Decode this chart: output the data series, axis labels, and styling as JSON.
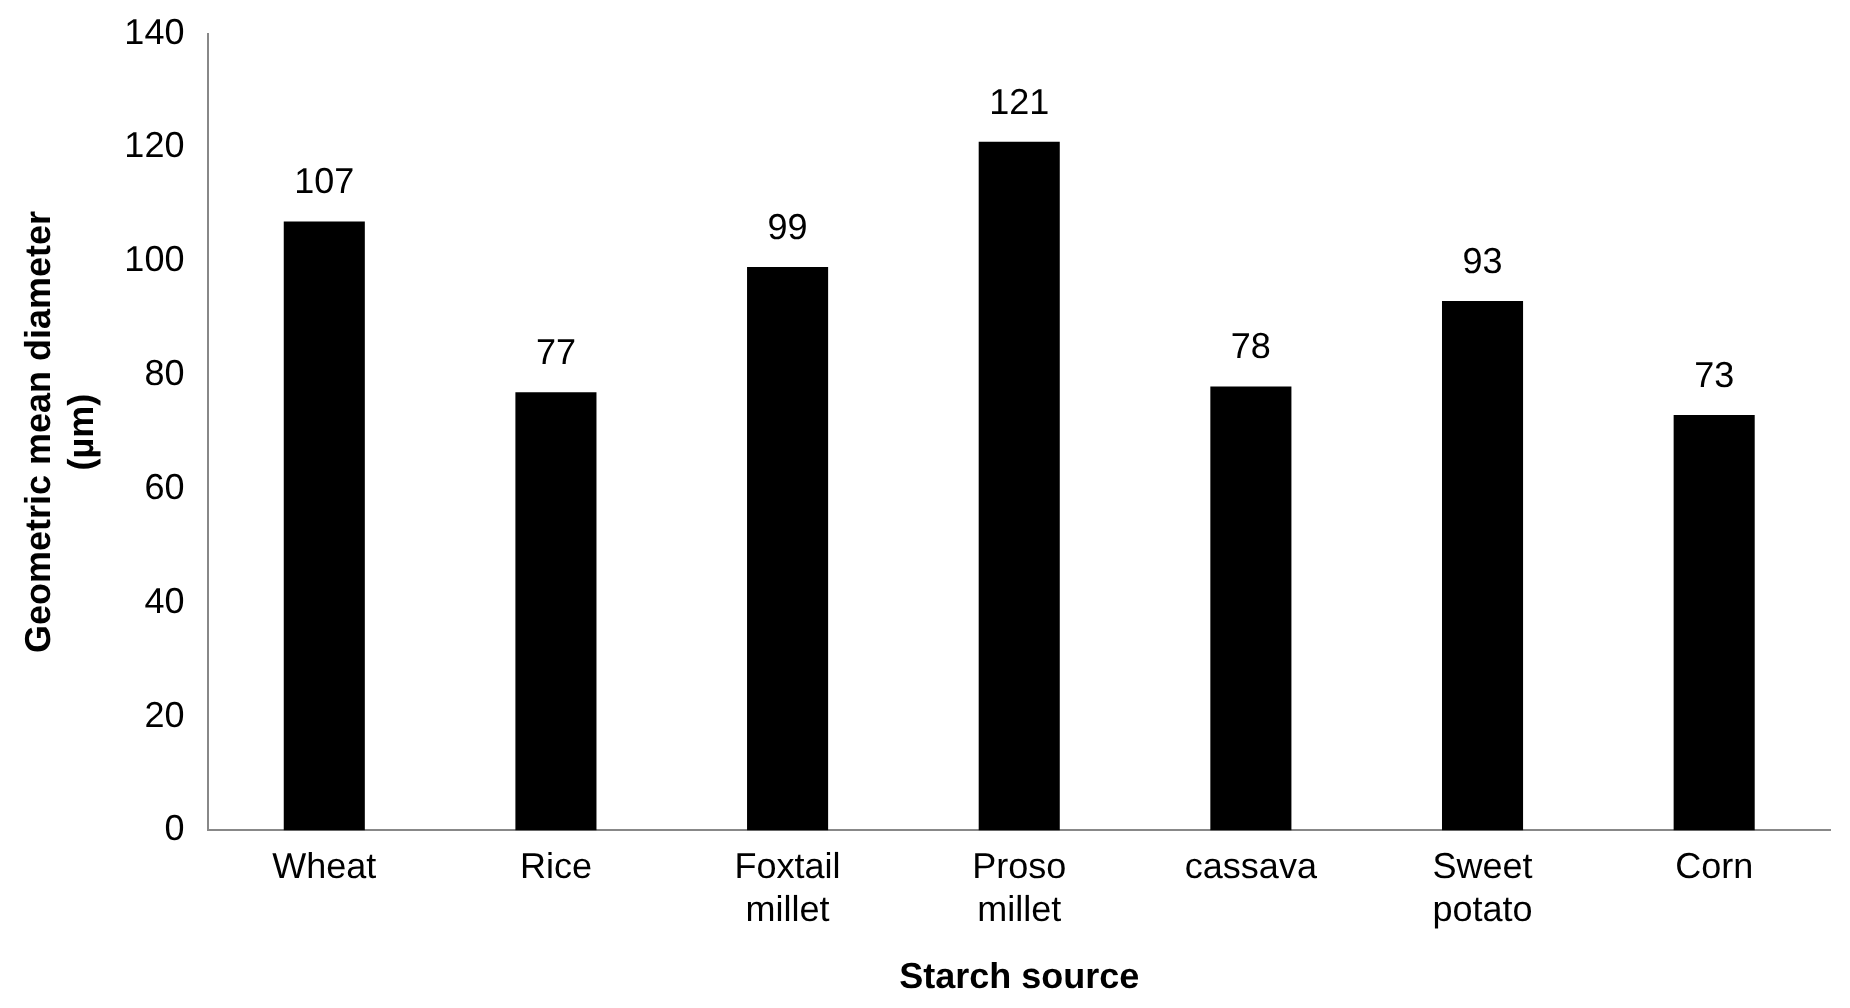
{
  "chart_data": {
    "type": "bar",
    "xlabel": "Starch source",
    "ylabel": "Geometric mean diameter (µm)",
    "categories": [
      "Wheat",
      "Rice",
      "Foxtail millet",
      "Proso millet",
      "cassava",
      "Sweet potato",
      "Corn"
    ],
    "values": [
      107,
      77,
      99,
      121,
      78,
      93,
      73
    ],
    "color": "#000000",
    "ylim": [
      0,
      140
    ],
    "yticks": [
      0,
      20,
      40,
      60,
      80,
      100,
      120,
      140
    ],
    "grid": false,
    "legend": false,
    "data_labels": true
  }
}
